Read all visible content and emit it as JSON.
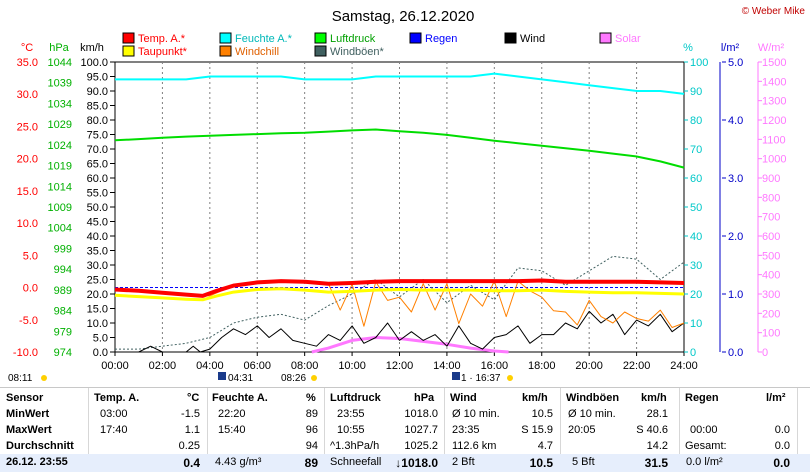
{
  "copyright": "© Weber Mike",
  "chart_data": {
    "type": "line",
    "title": "Samstag, 26.12.2020",
    "x_ticks": [
      "00:00",
      "02:00",
      "04:00",
      "06:00",
      "08:00",
      "10:00",
      "12:00",
      "14:00",
      "16:00",
      "18:00",
      "20:00",
      "22:00",
      "24:00"
    ],
    "xlim": [
      0,
      24
    ],
    "axes": {
      "temp": {
        "unit": "°C",
        "color": "#ff0000",
        "ticks": [
          "35.0",
          "30.0",
          "25.0",
          "20.0",
          "15.0",
          "10.0",
          "5.0",
          "0.0",
          "-5.0",
          "-10.0"
        ],
        "range": [
          -10,
          35
        ]
      },
      "hpa": {
        "unit": "hPa",
        "color": "#00b000",
        "ticks": [
          "1044",
          "1039",
          "1034",
          "1029",
          "1024",
          "1019",
          "1014",
          "1009",
          "1004",
          "999",
          "994",
          "989",
          "984",
          "979",
          "974"
        ],
        "range": [
          974,
          1044
        ]
      },
      "kmh": {
        "unit": "km/h",
        "color": "#000000",
        "ticks": [
          "100.0",
          "95.0",
          "90.0",
          "85.0",
          "80.0",
          "75.0",
          "70.0",
          "65.0",
          "60.0",
          "55.0",
          "50.0",
          "45.0",
          "40.0",
          "35.0",
          "30.0",
          "25.0",
          "20.0",
          "15.0",
          "10.0",
          "5.0",
          "0.0"
        ],
        "range": [
          0,
          100
        ]
      },
      "pct": {
        "unit": "%",
        "color": "#00c8c8",
        "ticks": [
          "100",
          "90",
          "80",
          "70",
          "60",
          "50",
          "40",
          "30",
          "20",
          "10",
          "0"
        ],
        "range": [
          0,
          100
        ]
      },
      "rain": {
        "unit": "l/m²",
        "color": "#0000c8",
        "ticks": [
          "5.0",
          "4.0",
          "3.0",
          "2.0",
          "1.0",
          "0.0"
        ],
        "range": [
          0,
          5
        ]
      },
      "solar": {
        "unit": "W/m²",
        "color": "#ff78ff",
        "ticks": [
          "1500",
          "1400",
          "1300",
          "1200",
          "1100",
          "1000",
          "900",
          "800",
          "700",
          "600",
          "500",
          "400",
          "300",
          "200",
          "100",
          "0"
        ],
        "range": [
          0,
          1500
        ]
      }
    },
    "legend": [
      {
        "name": "Temp. A.*",
        "color": "#ff0000"
      },
      {
        "name": "Feuchte A.*",
        "color": "#00ffff"
      },
      {
        "name": "Luftdruck",
        "color": "#00ff00"
      },
      {
        "name": "Regen",
        "color": "#0000ff"
      },
      {
        "name": "Wind",
        "color": "#000000"
      },
      {
        "name": "Solar",
        "color": "#ff78ff"
      },
      {
        "name": "Taupunkt*",
        "color": "#ffff00"
      },
      {
        "name": "Windchill",
        "color": "#ff8000"
      },
      {
        "name": "Windböen*",
        "color": "#406060"
      }
    ],
    "series": [
      {
        "name": "Temp. A.*",
        "axis": "temp",
        "color": "#ff0000",
        "width": 4,
        "x": [
          0,
          1,
          2,
          3,
          3.7,
          4.3,
          5,
          6,
          7,
          8,
          9,
          10,
          11,
          12,
          13,
          14,
          15,
          16,
          17,
          18,
          19,
          20,
          21,
          22,
          23,
          24
        ],
        "y": [
          -0.3,
          -0.5,
          -0.8,
          -1.1,
          -1.3,
          -0.5,
          0.3,
          0.8,
          1.0,
          0.9,
          0.6,
          0.7,
          0.9,
          1.0,
          1.0,
          1.0,
          1.0,
          1.0,
          1.0,
          1.1,
          0.9,
          0.9,
          0.9,
          0.9,
          0.8,
          0.7
        ]
      },
      {
        "name": "Taupunkt*",
        "axis": "temp",
        "color": "#ffff00",
        "width": 3,
        "x": [
          0,
          1,
          2,
          3,
          3.7,
          4.3,
          5,
          6,
          7,
          8,
          9,
          10,
          11,
          12,
          13,
          14,
          15,
          16,
          17,
          18,
          19,
          20,
          21,
          22,
          23,
          24
        ],
        "y": [
          -1.2,
          -1.4,
          -1.6,
          -1.8,
          -1.9,
          -1.3,
          -0.7,
          -0.3,
          -0.2,
          -0.4,
          -0.7,
          -0.6,
          -0.4,
          -0.3,
          -0.4,
          -0.4,
          -0.4,
          -0.5,
          -0.5,
          -0.4,
          -0.6,
          -0.7,
          -0.8,
          -0.8,
          -0.9,
          -1.0
        ]
      },
      {
        "name": "Feuchte A.*",
        "axis": "pct",
        "color": "#00ffff",
        "width": 2,
        "x": [
          0,
          1,
          2,
          3,
          4,
          5,
          6,
          7,
          8,
          9,
          10,
          11,
          12,
          13,
          14,
          15,
          16,
          17,
          18,
          19,
          20,
          21,
          22,
          23,
          24
        ],
        "y": [
          94,
          94,
          94,
          94,
          95,
          95,
          95,
          95,
          94,
          94,
          94,
          95,
          95,
          95,
          95,
          95,
          96,
          95,
          94,
          93,
          92,
          91,
          90,
          90,
          89
        ]
      },
      {
        "name": "Luftdruck",
        "axis": "hpa",
        "color": "#00dd00",
        "width": 2,
        "x": [
          0,
          1,
          2,
          3,
          4,
          5,
          6,
          7,
          8,
          9,
          10,
          11,
          12,
          13,
          14,
          15,
          16,
          17,
          18,
          19,
          20,
          21,
          22,
          23,
          24
        ],
        "y": [
          1025.1,
          1025.4,
          1025.7,
          1026.0,
          1026.2,
          1026.4,
          1026.6,
          1026.8,
          1026.9,
          1027.2,
          1027.5,
          1027.7,
          1027.3,
          1026.9,
          1026.4,
          1025.7,
          1025.0,
          1024.4,
          1023.8,
          1023.2,
          1022.6,
          1021.9,
          1021.2,
          1020.0,
          1018.5
        ]
      },
      {
        "name": "Windböen*",
        "axis": "kmh",
        "color": "#406060",
        "width": 1,
        "dash": "2,2",
        "x": [
          0,
          1,
          2,
          3,
          4,
          5,
          6,
          7,
          8,
          9,
          10,
          11,
          12,
          13,
          14,
          15,
          16,
          17,
          18,
          19,
          20,
          21,
          22,
          23,
          24
        ],
        "y": [
          1,
          1,
          2,
          3,
          5,
          10,
          12,
          13,
          11,
          16,
          20,
          25,
          19,
          25,
          17,
          23,
          18,
          29,
          28,
          23,
          28,
          33,
          32,
          25,
          31
        ]
      },
      {
        "name": "Windchill",
        "axis": "temp",
        "color": "#ff8000",
        "width": 1,
        "x": [
          0,
          1,
          2,
          3,
          4,
          5,
          6,
          7,
          8,
          9,
          9.5,
          10,
          10.5,
          11,
          11.5,
          12,
          12.5,
          13,
          13.5,
          14,
          14.5,
          15,
          15.5,
          16,
          16.5,
          17,
          17.5,
          18,
          18.5,
          19,
          19.5,
          20,
          20.5,
          21,
          21.5,
          22,
          22.5,
          23,
          23.5,
          24
        ],
        "y": [
          -0.3,
          -0.5,
          -0.8,
          -1.1,
          -1.3,
          0.3,
          0.8,
          1.0,
          0.9,
          0.6,
          -3.5,
          0.5,
          -6.0,
          0.9,
          -2.0,
          -1.5,
          -3.8,
          0.6,
          -3.5,
          0.6,
          -5.6,
          -1.0,
          -2.9,
          1.0,
          -4.5,
          1.0,
          -0.5,
          -1.5,
          -3.6,
          -3.8,
          -5.8,
          -2.0,
          -4.5,
          -5.5,
          -3.8,
          -4.8,
          -5.2,
          -3.5,
          -6.2,
          -5.5
        ]
      },
      {
        "name": "Wind",
        "axis": "kmh",
        "color": "#000000",
        "width": 1,
        "x": [
          0,
          1,
          1.5,
          2,
          2.5,
          3,
          3.3,
          3.6,
          4,
          4.5,
          5,
          5.5,
          6,
          6.5,
          7,
          7.5,
          8,
          8.5,
          9,
          9.5,
          10,
          10.5,
          11,
          11.5,
          12,
          12.5,
          13,
          13.5,
          14,
          14.5,
          15,
          15.5,
          16,
          16.5,
          17,
          17.5,
          18,
          18.5,
          19,
          19.5,
          20,
          20.5,
          21,
          21.5,
          22,
          22.5,
          23,
          23.5,
          24
        ],
        "y": [
          0,
          0,
          2,
          0,
          0,
          0,
          2,
          0,
          1,
          5,
          8,
          6,
          9,
          5,
          8,
          4,
          3,
          2,
          6,
          4,
          9,
          3,
          5,
          10,
          4,
          7,
          4,
          6,
          2,
          9,
          3,
          1,
          5,
          6,
          9,
          3,
          6,
          6,
          10,
          8,
          14,
          10,
          13,
          6,
          11,
          9,
          13,
          7,
          10
        ]
      },
      {
        "name": "Solar",
        "axis": "solar",
        "color": "#ff78ff",
        "width": 3,
        "x": [
          8.3,
          9,
          10,
          11,
          12,
          13,
          14,
          15,
          16,
          16.6
        ],
        "y": [
          0,
          20,
          60,
          75,
          70,
          55,
          40,
          20,
          5,
          0
        ]
      }
    ]
  },
  "markers": {
    "left_time": "08:11",
    "sunrise_low": "04:31",
    "sunrise": "08:26",
    "sunset": "1 · 16:37"
  },
  "stats": {
    "headers": {
      "sensor": "Sensor",
      "temp": "Temp. A.",
      "temp_unit": "°C",
      "hum": "Feuchte A.",
      "hum_unit": "%",
      "press": "Luftdruck",
      "press_unit": "hPa",
      "wind": "Wind",
      "wind_unit": "km/h",
      "gust": "Windböen",
      "gust_unit": "km/h",
      "rain": "Regen",
      "rain_unit": "l/m²"
    },
    "rows": [
      {
        "label": "MinWert",
        "t_time": "03:00",
        "t_val": "-1.5",
        "h_time": "22:20",
        "h_val": "89",
        "p_time": "23:55",
        "p_val": "1018.0",
        "w_a": "Ø 10 min.",
        "w_b": "10.5",
        "g_a": "Ø 10 min.",
        "g_b": "28.1",
        "r_a": "",
        "r_b": ""
      },
      {
        "label": "MaxWert",
        "t_time": "17:40",
        "t_val": "1.1",
        "h_time": "15:40",
        "h_val": "96",
        "p_time": "10:55",
        "p_val": "1027.7",
        "w_a": "23:35",
        "w_b": "S 15.9",
        "g_a": "20:05",
        "g_b": "S 40.6",
        "r_a": "00:00",
        "r_b": "0.0"
      },
      {
        "label": "Durchschnitt",
        "t_time": "",
        "t_val": "0.25",
        "h_time": "",
        "h_val": "94",
        "p_time": "^1.3hPa/h",
        "p_val": "1025.2",
        "w_a": "112.6 km",
        "w_b": "4.7",
        "g_a": "",
        "g_b": "14.2",
        "r_a": "Gesamt:",
        "r_b": "0.0"
      },
      {
        "label": "26.12. 23:55",
        "t_time": "",
        "t_val": "0.4",
        "h_time": "4.43 g/m³",
        "h_val": "89",
        "p_time": "Schneefall",
        "p_val": "↓1018.0",
        "w_a": "2 Bft",
        "w_b": "10.5",
        "g_a": "5 Bft",
        "g_b": "31.5",
        "r_a": "0.0 l/m²",
        "r_b": "0.0"
      }
    ]
  }
}
